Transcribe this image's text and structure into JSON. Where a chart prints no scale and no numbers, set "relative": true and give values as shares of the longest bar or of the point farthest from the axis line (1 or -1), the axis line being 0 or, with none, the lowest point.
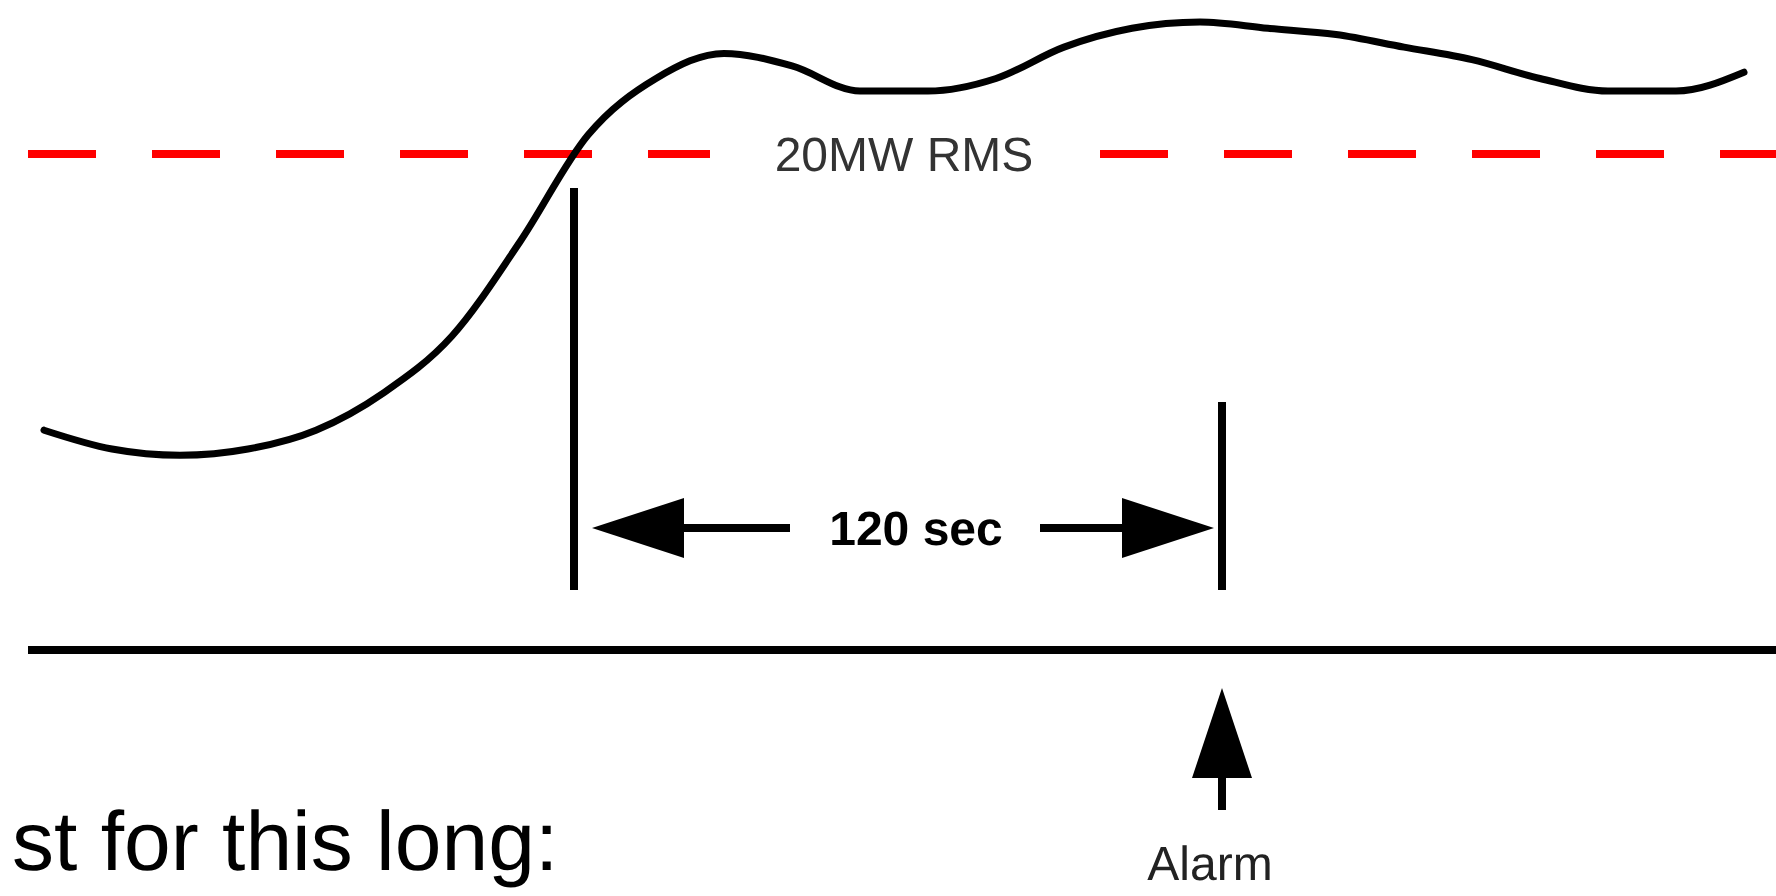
{
  "chart_data": {
    "type": "line",
    "relative": true,
    "categories": [
      null,
      null,
      null,
      null,
      null,
      null,
      null,
      null,
      null,
      null,
      null,
      null,
      null,
      null,
      null,
      null,
      null,
      null,
      null,
      null,
      null,
      null,
      null,
      null,
      null,
      null
    ],
    "series": [
      {
        "color": "#000000",
        "values": [
          0.35,
          0.32,
          0.31,
          0.32,
          0.35,
          0.41,
          0.5,
          0.65,
          0.82,
          0.91,
          0.95,
          0.93,
          0.89,
          0.89,
          0.91,
          0.96,
          0.99,
          1,
          0.99,
          0.98,
          0.96,
          0.94,
          0.91,
          0.89,
          0.89,
          0.92
        ]
      }
    ],
    "ref_lines": [
      {
        "axis": "y",
        "value": 0.79,
        "label": "20MW RMS",
        "color": "#ff0000",
        "line_style": "dashed"
      }
    ],
    "annotations": [
      "120 sec",
      "Alarm",
      "st for this long:"
    ]
  }
}
